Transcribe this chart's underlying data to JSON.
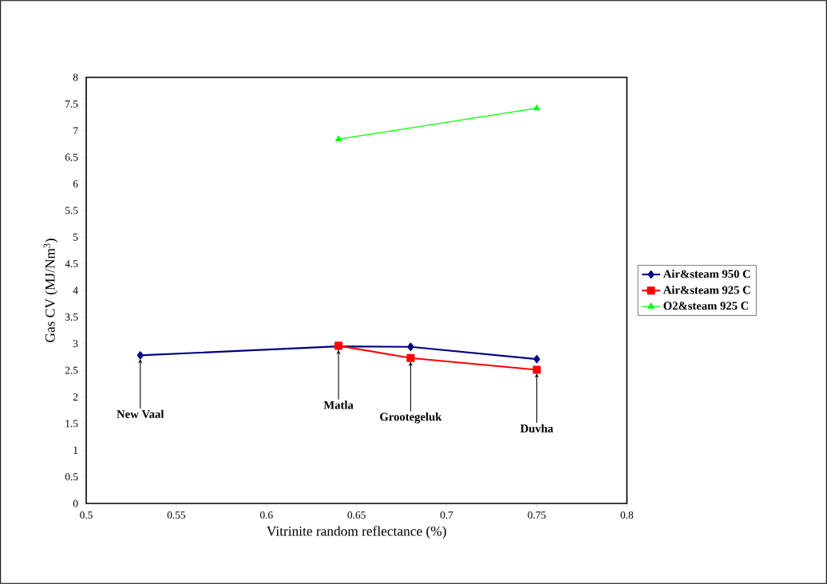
{
  "chart_data": {
    "type": "line",
    "xlabel": "Vitrinite random reflectance (%)",
    "ylabel": "Gas CV (MJ/Nm$^{3}$)",
    "xlim": [
      0.5,
      0.8
    ],
    "xticks": [
      0.5,
      0.55,
      0.6,
      0.65,
      0.7,
      0.75,
      0.8
    ],
    "ylim": [
      0,
      8
    ],
    "yticks": [
      0,
      0.5,
      1,
      1.5,
      2,
      2.5,
      3,
      3.5,
      4,
      4.5,
      5,
      5.5,
      6,
      6.5,
      7,
      7.5,
      8
    ],
    "grid": false,
    "legend": "right",
    "series": [
      {
        "name": "Air&steam  950 C",
        "color": "#000080",
        "marker": "diamond",
        "x": [
          0.53,
          0.64,
          0.68,
          0.75
        ],
        "values": [
          2.78,
          2.95,
          2.94,
          2.71
        ]
      },
      {
        "name": "Air&steam 925 C",
        "color": "#ff0000",
        "marker": "square",
        "x": [
          0.64,
          0.68,
          0.75
        ],
        "values": [
          2.96,
          2.73,
          2.51
        ]
      },
      {
        "name": "O2&steam 925 C",
        "color": "#00ff00",
        "marker": "triangle",
        "x": [
          0.64,
          0.75
        ],
        "values": [
          6.84,
          7.42
        ]
      }
    ],
    "annotations": [
      {
        "text": "New Vaal",
        "x": 0.53,
        "y": 2.78
      },
      {
        "text": "Matla",
        "x": 0.64,
        "y": 2.95
      },
      {
        "text": "Grootegeluk",
        "x": 0.68,
        "y": 2.73
      },
      {
        "text": "Duvha",
        "x": 0.75,
        "y": 2.51
      }
    ]
  }
}
